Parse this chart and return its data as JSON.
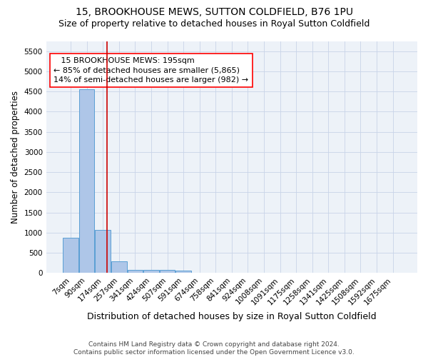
{
  "title1": "15, BROOKHOUSE MEWS, SUTTON COLDFIELD, B76 1PU",
  "title2": "Size of property relative to detached houses in Royal Sutton Coldfield",
  "xlabel": "Distribution of detached houses by size in Royal Sutton Coldfield",
  "ylabel": "Number of detached properties",
  "footnote": "Contains HM Land Registry data © Crown copyright and database right 2024.\nContains public sector information licensed under the Open Government Licence v3.0.",
  "bin_labels": [
    "7sqm",
    "90sqm",
    "174sqm",
    "257sqm",
    "341sqm",
    "424sqm",
    "507sqm",
    "591sqm",
    "674sqm",
    "758sqm",
    "841sqm",
    "924sqm",
    "1008sqm",
    "1091sqm",
    "1175sqm",
    "1258sqm",
    "1341sqm",
    "1425sqm",
    "1508sqm",
    "1592sqm",
    "1675sqm"
  ],
  "bar_heights": [
    880,
    4560,
    1060,
    290,
    80,
    80,
    70,
    50,
    0,
    0,
    0,
    0,
    0,
    0,
    0,
    0,
    0,
    0,
    0,
    0,
    0
  ],
  "bar_color": "#aec6e8",
  "bar_edgecolor": "#5a9fd4",
  "ylim": [
    0,
    5750
  ],
  "yticks": [
    0,
    500,
    1000,
    1500,
    2000,
    2500,
    3000,
    3500,
    4000,
    4500,
    5000,
    5500
  ],
  "grid_color": "#c8d4e8",
  "bg_color": "#edf2f8",
  "red_line_color": "#cc0000",
  "title1_fontsize": 10,
  "title2_fontsize": 9,
  "ylabel_fontsize": 8.5,
  "xlabel_fontsize": 9,
  "tick_fontsize": 7.5,
  "annotation_fontsize": 8,
  "annotation_line1": "   15 BROOKHOUSE MEWS: 195sqm",
  "annotation_line2": "← 85% of detached houses are smaller (5,865)",
  "annotation_line3": "14% of semi-detached houses are larger (982) →",
  "red_line_bin": 2.253,
  "footnote_fontsize": 6.5
}
